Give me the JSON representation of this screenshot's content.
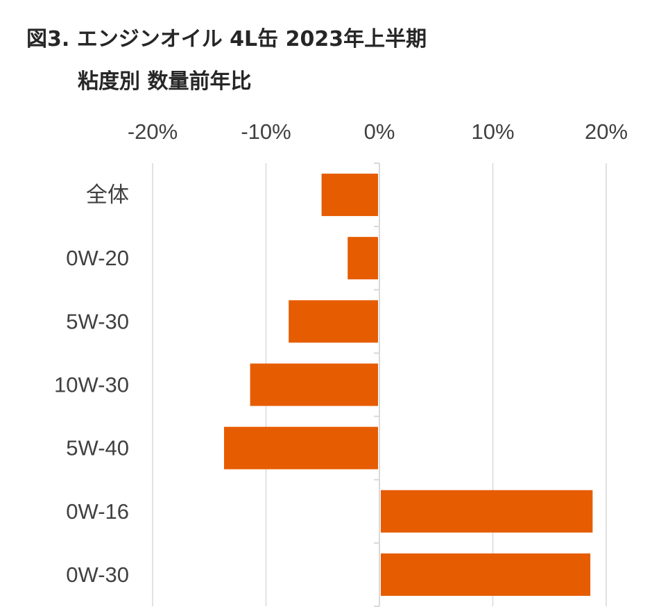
{
  "title": {
    "line1": "図3. エンジンオイル 4L缶 2023年上半期",
    "line2": "粘度別 数量前年比"
  },
  "colors": {
    "bar": "#E65C00",
    "gridline": "#D9D9D9",
    "axis": "#D9D9D9",
    "text": "#404040"
  },
  "chart_data": {
    "type": "bar",
    "orientation": "horizontal",
    "categories": [
      "全体",
      "0W-20",
      "5W-30",
      "10W-30",
      "5W-40",
      "0W-16",
      "0W-30"
    ],
    "values": [
      -5.1,
      -2.8,
      -8.0,
      -11.4,
      -13.7,
      18.8,
      18.6
    ],
    "xlim": [
      -20,
      20
    ],
    "xticks": [
      -20,
      -10,
      0,
      10,
      20
    ],
    "xtick_labels": [
      "-20%",
      "-10%",
      "0%",
      "10%",
      "20%"
    ],
    "tick_position": "top",
    "grid": true
  }
}
